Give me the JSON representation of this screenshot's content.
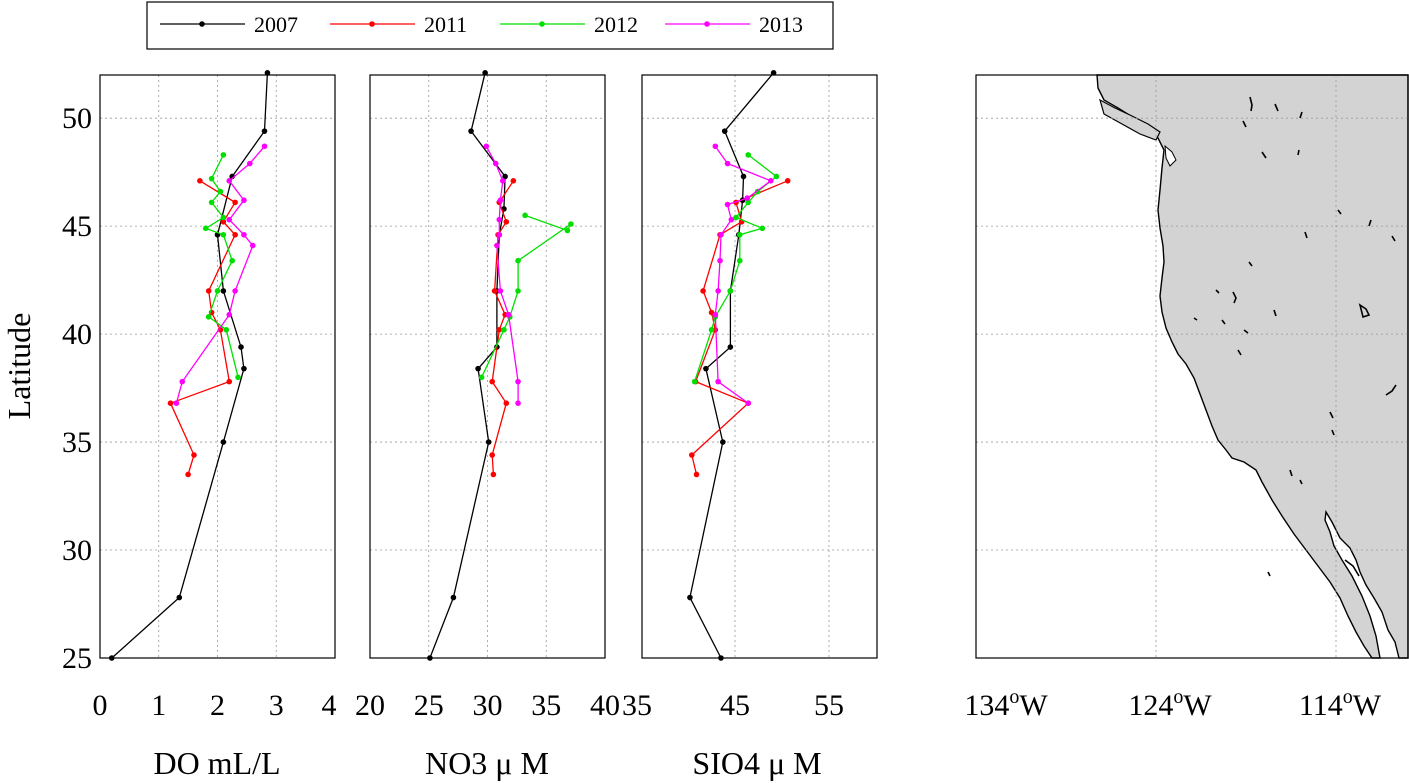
{
  "chart_data": [
    {
      "type": "line",
      "panel": "DO",
      "xlabel": "DO mL/L",
      "ylabel": "Latitude",
      "xlim": [
        0,
        4
      ],
      "ylim": [
        25,
        52
      ],
      "xticks": [
        "0",
        "1",
        "2",
        "3",
        "4"
      ],
      "yticks": [
        "25",
        "30",
        "35",
        "40",
        "45",
        "50"
      ],
      "grid": true,
      "series": [
        {
          "name": "2007",
          "color": "#000000",
          "points": [
            [
              2.85,
              52.1
            ],
            [
              2.8,
              49.4
            ],
            [
              2.25,
              47.3
            ],
            [
              2.0,
              44.6
            ],
            [
              2.1,
              42.0
            ],
            [
              2.4,
              39.4
            ],
            [
              2.45,
              38.4
            ],
            [
              2.1,
              35.0
            ],
            [
              1.35,
              27.8
            ],
            [
              0.2,
              25.0
            ]
          ]
        },
        {
          "name": "2011",
          "color": "#ff0000",
          "points": [
            [
              1.7,
              47.1
            ],
            [
              2.3,
              46.1
            ],
            [
              2.1,
              45.2
            ],
            [
              2.3,
              44.6
            ],
            [
              1.85,
              42.0
            ],
            [
              1.9,
              41.0
            ],
            [
              2.05,
              40.2
            ],
            [
              2.2,
              37.8
            ],
            [
              1.2,
              36.8
            ],
            [
              1.6,
              34.4
            ],
            [
              1.5,
              33.5
            ]
          ]
        },
        {
          "name": "2012",
          "color": "#00e000",
          "points": [
            [
              2.1,
              48.3
            ],
            [
              1.9,
              47.2
            ],
            [
              2.05,
              46.6
            ],
            [
              1.9,
              46.1
            ],
            [
              2.1,
              45.4
            ],
            [
              1.8,
              44.9
            ],
            [
              2.1,
              44.6
            ],
            [
              2.25,
              43.4
            ],
            [
              2.0,
              42.0
            ],
            [
              1.85,
              40.8
            ],
            [
              2.15,
              40.2
            ],
            [
              2.35,
              38.0
            ]
          ]
        },
        {
          "name": "2013",
          "color": "#ff00ff",
          "points": [
            [
              2.8,
              48.7
            ],
            [
              2.55,
              47.9
            ],
            [
              2.2,
              47.1
            ],
            [
              2.45,
              46.2
            ],
            [
              2.2,
              45.3
            ],
            [
              2.45,
              44.6
            ],
            [
              2.6,
              44.1
            ],
            [
              2.3,
              42.0
            ],
            [
              2.2,
              40.9
            ],
            [
              1.4,
              37.8
            ],
            [
              1.3,
              36.8
            ]
          ]
        }
      ]
    },
    {
      "type": "line",
      "panel": "NO3",
      "xlabel": "NO3 μ M",
      "xlim": [
        20,
        40
      ],
      "ylim": [
        25,
        52
      ],
      "xticks": [
        "20",
        "25",
        "30",
        "35",
        "40"
      ],
      "grid": true,
      "series": [
        {
          "name": "2007",
          "color": "#000000",
          "points": [
            [
              29.8,
              52.1
            ],
            [
              28.6,
              49.4
            ],
            [
              31.5,
              47.3
            ],
            [
              31.4,
              45.8
            ],
            [
              31.0,
              44.6
            ],
            [
              30.8,
              42.0
            ],
            [
              30.8,
              39.4
            ],
            [
              29.2,
              38.4
            ],
            [
              30.1,
              35.0
            ],
            [
              27.1,
              27.8
            ],
            [
              25.1,
              25.0
            ]
          ]
        },
        {
          "name": "2011",
          "color": "#ff0000",
          "points": [
            [
              32.2,
              47.1
            ],
            [
              31.0,
              46.1
            ],
            [
              31.6,
              45.2
            ],
            [
              30.9,
              44.6
            ],
            [
              30.6,
              42.0
            ],
            [
              31.5,
              40.9
            ],
            [
              31.0,
              40.2
            ],
            [
              30.4,
              37.8
            ],
            [
              31.6,
              36.8
            ],
            [
              30.4,
              34.4
            ],
            [
              30.5,
              33.5
            ]
          ]
        },
        {
          "name": "2012",
          "color": "#00e000",
          "points": [
            [
              33.2,
              45.5
            ],
            [
              36.8,
              44.8
            ],
            [
              37.1,
              45.1
            ],
            [
              32.6,
              43.4
            ],
            [
              32.6,
              42.0
            ],
            [
              31.9,
              40.8
            ],
            [
              31.4,
              40.2
            ],
            [
              29.5,
              38.0
            ]
          ]
        },
        {
          "name": "2013",
          "color": "#ff00ff",
          "points": [
            [
              29.9,
              48.7
            ],
            [
              30.7,
              47.9
            ],
            [
              31.3,
              47.1
            ],
            [
              31.1,
              46.2
            ],
            [
              31.0,
              45.3
            ],
            [
              31.0,
              44.6
            ],
            [
              30.8,
              44.1
            ],
            [
              31.1,
              42.0
            ],
            [
              31.8,
              40.9
            ],
            [
              32.6,
              37.8
            ],
            [
              32.6,
              36.8
            ]
          ]
        }
      ]
    },
    {
      "type": "line",
      "panel": "SIO4",
      "xlabel": "SIO4 μ M",
      "xlim": [
        35,
        60
      ],
      "ylim": [
        25,
        52
      ],
      "xticks": [
        "35",
        "45",
        "55"
      ],
      "grid": true,
      "series": [
        {
          "name": "2007",
          "color": "#000000",
          "points": [
            [
              49.0,
              52.1
            ],
            [
              43.8,
              49.4
            ],
            [
              45.8,
              47.3
            ],
            [
              45.7,
              46.2
            ],
            [
              45.3,
              44.6
            ],
            [
              44.4,
              42.0
            ],
            [
              44.4,
              39.4
            ],
            [
              41.8,
              38.4
            ],
            [
              43.6,
              35.0
            ],
            [
              40.1,
              27.8
            ],
            [
              43.4,
              25.0
            ]
          ]
        },
        {
          "name": "2011",
          "color": "#ff0000",
          "points": [
            [
              50.5,
              47.1
            ],
            [
              45.0,
              46.1
            ],
            [
              45.6,
              45.2
            ],
            [
              43.3,
              44.6
            ],
            [
              41.5,
              42.0
            ],
            [
              42.4,
              41.0
            ],
            [
              42.8,
              40.2
            ],
            [
              40.7,
              37.8
            ],
            [
              46.3,
              36.8
            ],
            [
              40.3,
              34.4
            ],
            [
              40.8,
              33.5
            ]
          ]
        },
        {
          "name": "2012",
          "color": "#00e000",
          "points": [
            [
              46.3,
              48.3
            ],
            [
              49.3,
              47.3
            ],
            [
              47.3,
              46.6
            ],
            [
              46.3,
              46.1
            ],
            [
              45.0,
              45.4
            ],
            [
              47.8,
              44.9
            ],
            [
              45.4,
              44.6
            ],
            [
              45.4,
              43.4
            ],
            [
              44.4,
              42.0
            ],
            [
              42.8,
              40.8
            ],
            [
              42.4,
              40.2
            ],
            [
              40.6,
              37.8
            ]
          ]
        },
        {
          "name": "2013",
          "color": "#ff00ff",
          "points": [
            [
              42.8,
              48.7
            ],
            [
              44.1,
              47.9
            ],
            [
              48.7,
              47.1
            ],
            [
              46.2,
              46.3
            ],
            [
              44.1,
              46.0
            ],
            [
              44.5,
              45.3
            ],
            [
              43.4,
              44.6
            ],
            [
              43.3,
              43.4
            ],
            [
              43.1,
              42.0
            ],
            [
              42.8,
              40.9
            ],
            [
              43.1,
              37.8
            ],
            [
              46.3,
              36.8
            ]
          ]
        }
      ]
    }
  ],
  "map": {
    "xticks": [
      "134",
      "124",
      "114"
    ],
    "tick_suffix_sup": "o",
    "tick_suffix": "W",
    "lon_range": [
      134,
      110
    ],
    "lat_range": [
      25,
      52
    ],
    "land_color": "#d3d3d3"
  },
  "legend": {
    "placement": "top",
    "entries": [
      "2007",
      "2011",
      "2012",
      "2013"
    ]
  }
}
